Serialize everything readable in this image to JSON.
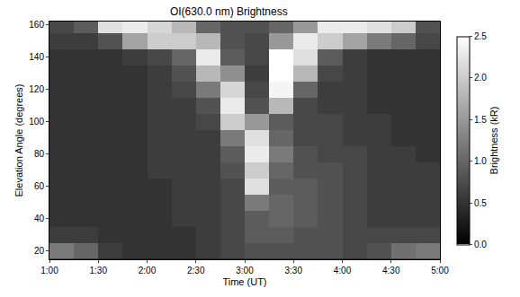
{
  "chart_data": {
    "type": "heatmap",
    "title": "OI(630.0 nm) Brightness",
    "x_label": "Time (UT)",
    "y_label": "Elevation Angle (degrees)",
    "x": [
      1.125,
      1.375,
      1.625,
      1.875,
      2.125,
      2.375,
      2.625,
      2.875,
      3.125,
      3.375,
      3.625,
      3.875,
      4.125,
      4.375,
      4.625,
      4.875
    ],
    "y": [
      20,
      30,
      40,
      50,
      60,
      70,
      80,
      90,
      100,
      110,
      120,
      130,
      140,
      150,
      160
    ],
    "cells": [
      [
        1.2,
        1.0,
        0.6,
        0.5,
        0.5,
        0.5,
        0.6,
        0.7,
        0.8,
        0.8,
        0.8,
        0.8,
        0.7,
        0.8,
        1.1,
        1.2
      ],
      [
        0.6,
        0.6,
        0.5,
        0.5,
        0.5,
        0.5,
        0.6,
        0.7,
        0.9,
        0.9,
        0.8,
        0.8,
        0.7,
        0.7,
        0.7,
        0.7
      ],
      [
        0.5,
        0.5,
        0.5,
        0.5,
        0.5,
        0.6,
        0.6,
        0.7,
        0.9,
        1.0,
        0.9,
        0.8,
        0.7,
        0.6,
        0.6,
        0.6
      ],
      [
        0.5,
        0.5,
        0.5,
        0.5,
        0.5,
        0.6,
        0.6,
        0.7,
        1.2,
        1.0,
        0.9,
        0.8,
        0.7,
        0.6,
        0.6,
        0.6
      ],
      [
        0.5,
        0.5,
        0.5,
        0.5,
        0.5,
        0.6,
        0.6,
        0.7,
        2.2,
        0.9,
        0.9,
        0.8,
        0.7,
        0.6,
        0.6,
        0.6
      ],
      [
        0.5,
        0.5,
        0.5,
        0.5,
        0.6,
        0.6,
        0.6,
        0.8,
        2.0,
        1.0,
        0.8,
        0.8,
        0.7,
        0.6,
        0.6,
        0.6
      ],
      [
        0.5,
        0.5,
        0.5,
        0.5,
        0.6,
        0.6,
        0.6,
        0.9,
        2.3,
        1.2,
        0.8,
        0.7,
        0.7,
        0.6,
        0.6,
        0.5
      ],
      [
        0.5,
        0.5,
        0.5,
        0.5,
        0.6,
        0.6,
        0.6,
        1.2,
        2.2,
        1.0,
        0.7,
        0.7,
        0.6,
        0.6,
        0.5,
        0.5
      ],
      [
        0.5,
        0.5,
        0.5,
        0.5,
        0.6,
        0.6,
        0.7,
        2.0,
        1.5,
        0.9,
        0.7,
        0.7,
        0.6,
        0.6,
        0.5,
        0.5
      ],
      [
        0.5,
        0.5,
        0.5,
        0.5,
        0.6,
        0.6,
        0.8,
        2.3,
        0.8,
        1.8,
        0.7,
        0.6,
        0.6,
        0.5,
        0.5,
        0.5
      ],
      [
        0.5,
        0.5,
        0.5,
        0.5,
        0.6,
        0.7,
        1.2,
        2.1,
        0.7,
        2.4,
        1.0,
        0.6,
        0.6,
        0.5,
        0.5,
        0.5
      ],
      [
        0.5,
        0.5,
        0.5,
        0.5,
        0.6,
        0.8,
        1.8,
        1.4,
        0.6,
        2.5,
        1.8,
        0.7,
        0.6,
        0.5,
        0.5,
        0.5
      ],
      [
        0.5,
        0.5,
        0.5,
        0.6,
        0.7,
        1.0,
        2.3,
        0.9,
        0.7,
        2.5,
        2.2,
        0.9,
        0.6,
        0.5,
        0.5,
        0.5
      ],
      [
        0.6,
        0.6,
        0.8,
        1.6,
        2.0,
        2.0,
        1.8,
        0.8,
        0.7,
        1.5,
        2.3,
        2.0,
        1.6,
        1.2,
        1.0,
        0.7
      ],
      [
        0.7,
        0.9,
        2.2,
        2.3,
        2.1,
        1.8,
        1.0,
        0.8,
        0.8,
        1.0,
        1.5,
        2.3,
        2.3,
        2.2,
        2.0,
        0.8
      ]
    ],
    "xlim": [
      1,
      5
    ],
    "xticks": [
      {
        "value": 1,
        "label": "1:00"
      },
      {
        "value": 1.5,
        "label": "1:30"
      },
      {
        "value": 2,
        "label": "2:00"
      },
      {
        "value": 2.5,
        "label": "2:30"
      },
      {
        "value": 3,
        "label": "3:00"
      },
      {
        "value": 3.5,
        "label": "3:30"
      },
      {
        "value": 4,
        "label": "4:00"
      },
      {
        "value": 4.5,
        "label": "4:30"
      },
      {
        "value": 5,
        "label": "5:00"
      }
    ],
    "ylim": [
      15,
      162
    ],
    "yticks": [
      20,
      40,
      60,
      80,
      100,
      120,
      140,
      160
    ],
    "colorbar": {
      "title": "Brightness (kR)",
      "range": [
        0,
        2.5
      ],
      "ticks": [
        {
          "value": 0,
          "label": "0.0"
        },
        {
          "value": 0.5,
          "label": "0.5"
        },
        {
          "value": 1,
          "label": "1.0"
        },
        {
          "value": 1.5,
          "label": "1.5"
        },
        {
          "value": 2,
          "label": "2.0"
        },
        {
          "value": 2.5,
          "label": "2.5"
        }
      ]
    },
    "grid": false
  }
}
